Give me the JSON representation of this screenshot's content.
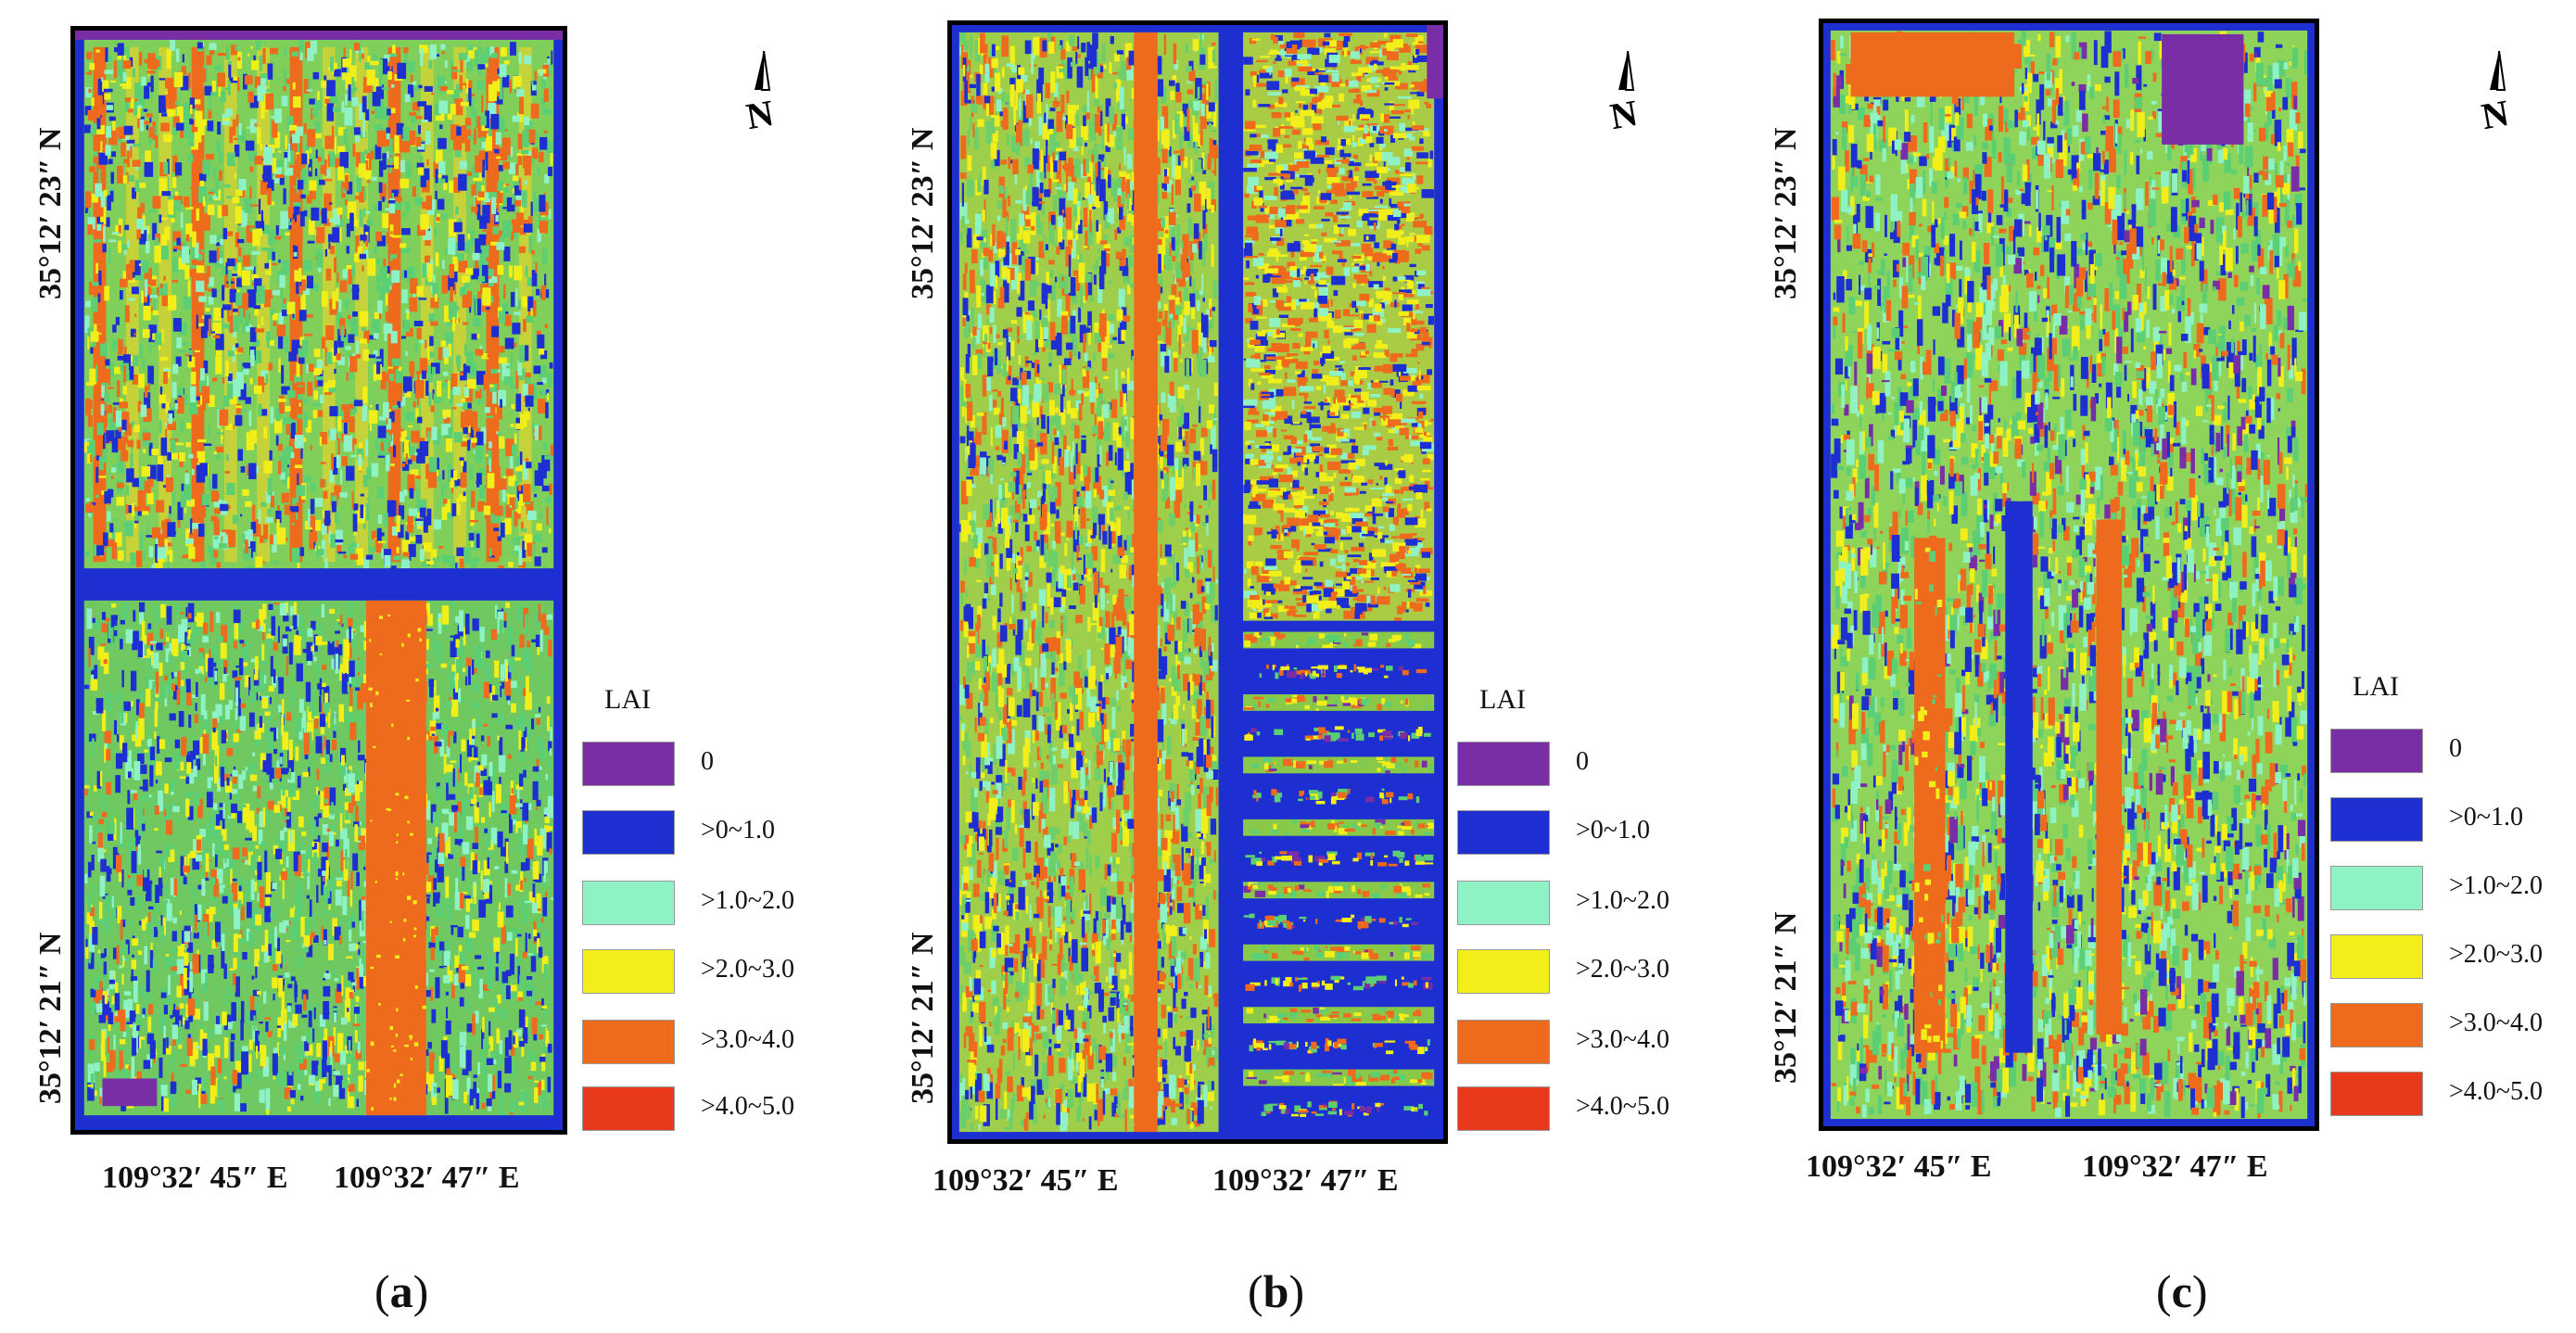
{
  "legend": {
    "title": "LAI",
    "classes": [
      {
        "label": "0",
        "color": "#7a2ea6"
      },
      {
        "label": ">0~1.0",
        "color": "#1d2fd0"
      },
      {
        "label": ">1.0~2.0",
        "color": "#8ff2c4"
      },
      {
        "label": ">2.0~3.0",
        "color": "#f2ee1a"
      },
      {
        "label": ">3.0~4.0",
        "color": "#ee6a1c"
      },
      {
        "label": ">4.0~5.0",
        "color": "#e8391c"
      }
    ]
  },
  "north_label": "N",
  "panels": [
    {
      "id": "a",
      "caption_open": "(",
      "caption_letter": "a",
      "caption_close": ")",
      "lat_top": "35°12′ 23″ N",
      "lat_bottom": "35°12′ 21″ N",
      "lon_left": "109°32′ 45″ E",
      "lon_right": "109°32′ 47″ E"
    },
    {
      "id": "b",
      "caption_open": "(",
      "caption_letter": "b",
      "caption_close": ")",
      "lat_top": "35°12′ 23″ N",
      "lat_bottom": "35°12′ 21″ N",
      "lon_left": "109°32′ 45″ E",
      "lon_right": "109°32′ 47″ E"
    },
    {
      "id": "c",
      "caption_open": "(",
      "caption_letter": "c",
      "caption_close": ")",
      "lat_top": "35°12′ 23″ N",
      "lat_bottom": "35°12′ 21″ N",
      "lon_left": "109°32′ 45″ E",
      "lon_right": "109°32′ 47″ E"
    }
  ]
}
